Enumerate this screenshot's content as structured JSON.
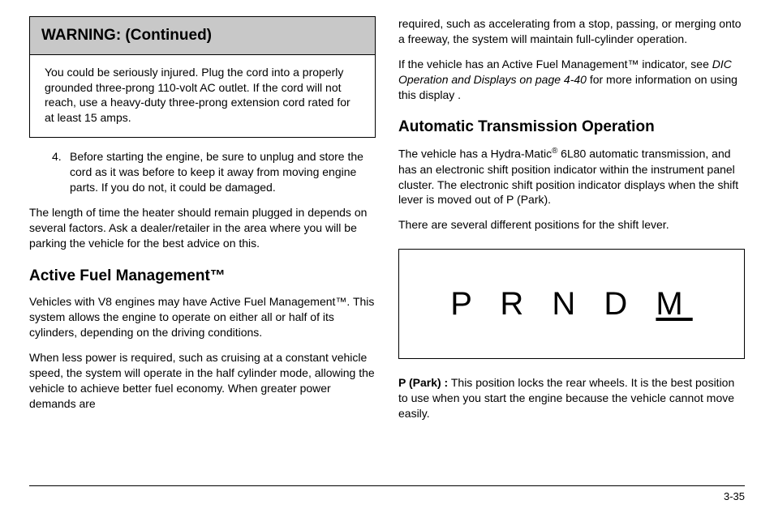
{
  "left": {
    "warning": {
      "header": "WARNING:  (Continued)",
      "body": "You could be seriously injured. Plug the cord into a properly grounded three-prong 110-volt AC outlet. If the cord will not reach, use a heavy-duty three-prong extension cord rated for at least 15 amps."
    },
    "step4_num": "4.",
    "step4_text": "Before starting the engine, be sure to unplug and store the cord as it was before to keep it away from moving engine parts. If you do not, it could be damaged.",
    "heater_para": "The length of time the heater should remain plugged in depends on several factors. Ask a dealer/retailer in the area where you will be parking the vehicle for the best advice on this.",
    "afm_heading": "Active Fuel Management™",
    "afm_p1": "Vehicles with V8 engines may have Active Fuel Management™. This system allows the engine to operate on either all or half of its cylinders, depending on the driving conditions.",
    "afm_p2": "When less power is required, such as cruising at a constant vehicle speed, the system will operate in the half cylinder mode, allowing the vehicle to achieve better fuel economy. When greater power demands are"
  },
  "right": {
    "cont_para": "required, such as accelerating from a stop, passing, or merging onto a freeway, the system will maintain full-cylinder operation.",
    "indicator_pre": "If the vehicle has an Active Fuel Management™ indicator, see ",
    "indicator_ref": "DIC Operation and Displays on page 4-40",
    "indicator_post": " for more information on using this display .",
    "ato_heading": "Automatic Transmission Operation",
    "ato_p1_pre": "The vehicle has a Hydra-Matic",
    "ato_p1_reg": "®",
    "ato_p1_post": " 6L80 automatic transmission, and has an electronic shift position indicator within the instrument panel cluster. The electronic shift position indicator displays when the shift lever is moved out of P (Park).",
    "ato_p2": "There are several different positions for the shift lever.",
    "prndm": {
      "p": "P",
      "r": "R",
      "n": "N",
      "d": "D",
      "m": "M"
    },
    "park_label": "P (Park) :",
    "park_text": " This position locks the rear wheels. It is the best position to use when you start the engine because the vehicle cannot move easily."
  },
  "page_number": "3-35"
}
